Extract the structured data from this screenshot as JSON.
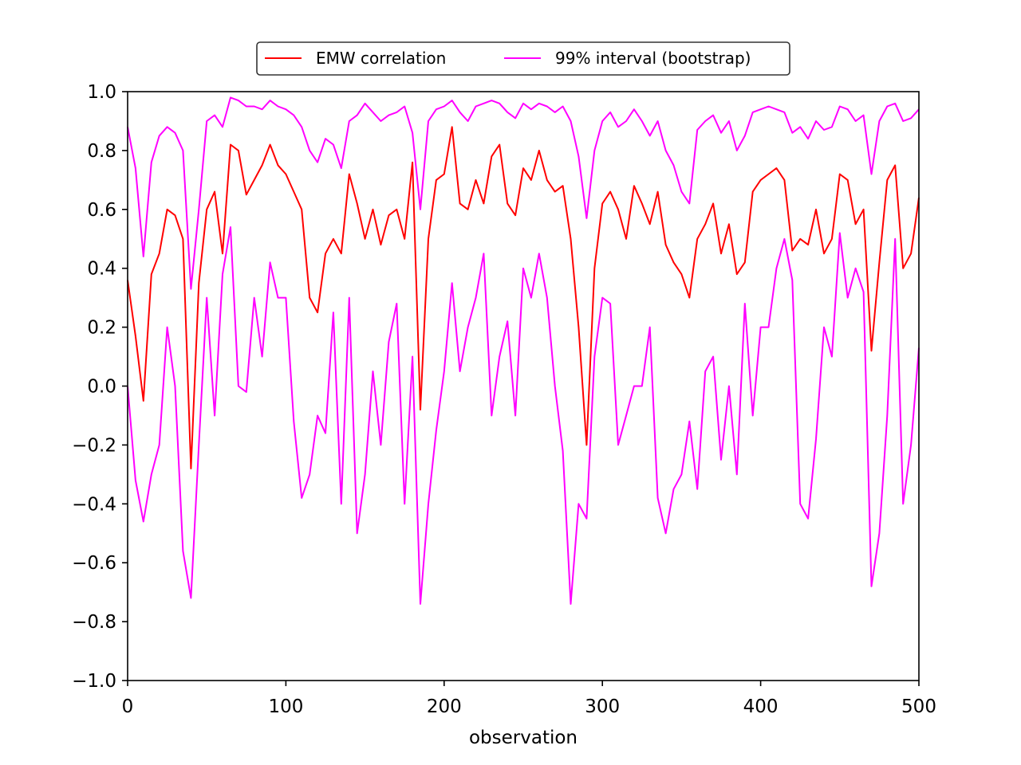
{
  "chart_data": {
    "type": "line",
    "title": "",
    "xlabel": "observation",
    "ylabel": "",
    "xlim": [
      0,
      500
    ],
    "ylim": [
      -1.0,
      1.0
    ],
    "x_ticks": [
      0,
      100,
      200,
      300,
      400,
      500
    ],
    "x_tick_labels": [
      "0",
      "100",
      "200",
      "300",
      "400",
      "500"
    ],
    "y_ticks": [
      -1.0,
      -0.8,
      -0.6,
      -0.4,
      -0.2,
      0.0,
      0.2,
      0.4,
      0.6,
      0.8,
      1.0
    ],
    "y_tick_labels": [
      "−1.0",
      "−0.8",
      "−0.6",
      "−0.4",
      "−0.2",
      "0.0",
      "0.2",
      "0.4",
      "0.6",
      "0.8",
      "1.0"
    ],
    "grid": false,
    "legend_position": "top-center",
    "legend": [
      {
        "label": "EMW correlation",
        "color": "#ff0000"
      },
      {
        "label": "99% interval (bootstrap)",
        "color": "#ff00ff"
      }
    ],
    "x": [
      0,
      5,
      10,
      15,
      20,
      25,
      30,
      35,
      40,
      45,
      50,
      55,
      60,
      65,
      70,
      75,
      80,
      85,
      90,
      95,
      100,
      105,
      110,
      115,
      120,
      125,
      130,
      135,
      140,
      145,
      150,
      155,
      160,
      165,
      170,
      175,
      180,
      185,
      190,
      195,
      200,
      205,
      210,
      215,
      220,
      225,
      230,
      235,
      240,
      245,
      250,
      255,
      260,
      265,
      270,
      275,
      280,
      285,
      290,
      295,
      300,
      305,
      310,
      315,
      320,
      325,
      330,
      335,
      340,
      345,
      350,
      355,
      360,
      365,
      370,
      375,
      380,
      385,
      390,
      395,
      400,
      405,
      410,
      415,
      420,
      425,
      430,
      435,
      440,
      445,
      450,
      455,
      460,
      465,
      470,
      475,
      480,
      485,
      490,
      495,
      500
    ],
    "series": [
      {
        "name": "EMW correlation",
        "color": "#ff0000",
        "values": [
          0.36,
          0.17,
          -0.05,
          0.38,
          0.45,
          0.6,
          0.58,
          0.5,
          -0.28,
          0.35,
          0.6,
          0.66,
          0.45,
          0.82,
          0.8,
          0.65,
          0.7,
          0.75,
          0.82,
          0.75,
          0.72,
          0.66,
          0.6,
          0.3,
          0.25,
          0.45,
          0.5,
          0.45,
          0.72,
          0.62,
          0.5,
          0.6,
          0.48,
          0.58,
          0.6,
          0.5,
          0.76,
          -0.08,
          0.5,
          0.7,
          0.72,
          0.88,
          0.62,
          0.6,
          0.7,
          0.62,
          0.78,
          0.82,
          0.62,
          0.58,
          0.74,
          0.7,
          0.8,
          0.7,
          0.66,
          0.68,
          0.5,
          0.2,
          -0.2,
          0.4,
          0.62,
          0.66,
          0.6,
          0.5,
          0.68,
          0.62,
          0.55,
          0.66,
          0.48,
          0.42,
          0.38,
          0.3,
          0.5,
          0.55,
          0.62,
          0.45,
          0.55,
          0.38,
          0.42,
          0.66,
          0.7,
          0.72,
          0.74,
          0.7,
          0.46,
          0.5,
          0.48,
          0.6,
          0.45,
          0.5,
          0.72,
          0.7,
          0.55,
          0.6,
          0.12,
          0.42,
          0.7,
          0.75,
          0.4,
          0.45,
          0.64
        ]
      },
      {
        "name": "99% interval (bootstrap)",
        "color": "#ff00ff",
        "values": [
          0.88,
          0.74,
          0.44,
          0.76,
          0.85,
          0.88,
          0.86,
          0.8,
          0.33,
          0.6,
          0.9,
          0.92,
          0.88,
          0.98,
          0.97,
          0.95,
          0.95,
          0.94,
          0.97,
          0.95,
          0.94,
          0.92,
          0.88,
          0.8,
          0.76,
          0.84,
          0.82,
          0.74,
          0.9,
          0.92,
          0.96,
          0.93,
          0.9,
          0.92,
          0.93,
          0.95,
          0.86,
          0.6,
          0.9,
          0.94,
          0.95,
          0.97,
          0.93,
          0.9,
          0.95,
          0.96,
          0.97,
          0.96,
          0.93,
          0.91,
          0.96,
          0.94,
          0.96,
          0.95,
          0.93,
          0.95,
          0.9,
          0.78,
          0.57,
          0.8,
          0.9,
          0.93,
          0.88,
          0.9,
          0.94,
          0.9,
          0.85,
          0.9,
          0.8,
          0.75,
          0.66,
          0.62,
          0.87,
          0.9,
          0.92,
          0.86,
          0.9,
          0.8,
          0.85,
          0.93,
          0.94,
          0.95,
          0.94,
          0.93,
          0.86,
          0.88,
          0.84,
          0.9,
          0.87,
          0.88,
          0.95,
          0.94,
          0.9,
          0.92,
          0.72,
          0.9,
          0.95,
          0.96,
          0.9,
          0.91,
          0.94
        ]
      },
      {
        "name": "99% interval (bootstrap)",
        "color": "#ff00ff",
        "values": [
          0.0,
          -0.32,
          -0.46,
          -0.3,
          -0.2,
          0.2,
          0.0,
          -0.56,
          -0.72,
          -0.2,
          0.3,
          -0.1,
          0.38,
          0.54,
          0.0,
          -0.02,
          0.3,
          0.1,
          0.42,
          0.3,
          0.3,
          -0.12,
          -0.38,
          -0.3,
          -0.1,
          -0.16,
          0.25,
          -0.4,
          0.3,
          -0.5,
          -0.3,
          0.05,
          -0.2,
          0.15,
          0.28,
          -0.4,
          0.1,
          -0.74,
          -0.4,
          -0.15,
          0.05,
          0.35,
          0.05,
          0.2,
          0.3,
          0.45,
          -0.1,
          0.1,
          0.22,
          -0.1,
          0.4,
          0.3,
          0.45,
          0.3,
          0.0,
          -0.22,
          -0.74,
          -0.4,
          -0.45,
          0.1,
          0.3,
          0.28,
          -0.2,
          -0.1,
          0.0,
          0.0,
          0.2,
          -0.38,
          -0.5,
          -0.35,
          -0.3,
          -0.12,
          -0.35,
          0.05,
          0.1,
          -0.25,
          0.0,
          -0.3,
          0.28,
          -0.1,
          0.2,
          0.2,
          0.4,
          0.5,
          0.36,
          -0.4,
          -0.45,
          -0.18,
          0.2,
          0.1,
          0.52,
          0.3,
          0.4,
          0.32,
          -0.68,
          -0.5,
          -0.1,
          0.5,
          -0.4,
          -0.2,
          0.13
        ]
      }
    ]
  }
}
